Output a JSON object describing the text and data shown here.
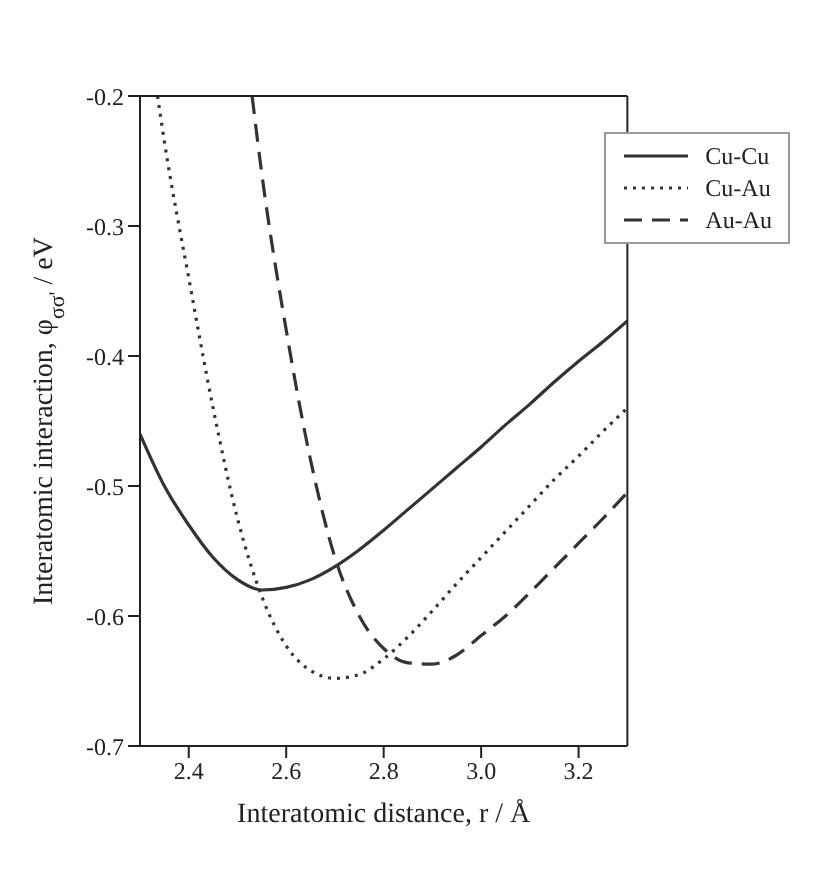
{
  "chart_data": {
    "type": "line",
    "xlabel": "Interatomic distance, r / Å",
    "ylabel": "Interatomic interaction, φ$_{σσ'}$ / eV",
    "xlim": [
      2.3,
      3.3
    ],
    "xticks": [
      {
        "value": 2.4,
        "label": "2.4"
      },
      {
        "value": 2.6,
        "label": "2.6"
      },
      {
        "value": 2.8,
        "label": "2.8"
      },
      {
        "value": 3.0,
        "label": "3.0"
      },
      {
        "value": 3.2,
        "label": "3.2"
      }
    ],
    "ylim": [
      -0.7,
      -0.2
    ],
    "yticks": [
      -0.7,
      -0.6,
      -0.5,
      -0.4,
      -0.3,
      -0.2
    ],
    "grid": false,
    "legend": "top right",
    "marker": "none",
    "series": [
      {
        "name": "Cu-Cu",
        "color": "#333333",
        "line_style": "solid",
        "x": [
          2.3,
          2.35,
          2.4,
          2.45,
          2.5,
          2.55,
          2.6,
          2.65,
          2.7,
          2.75,
          2.8,
          2.85,
          2.9,
          2.95,
          3.0,
          3.05,
          3.1,
          3.15,
          3.2,
          3.25,
          3.3
        ],
        "values": [
          -0.46,
          -0.5,
          -0.53,
          -0.555,
          -0.572,
          -0.58,
          -0.578,
          -0.572,
          -0.562,
          -0.549,
          -0.534,
          -0.518,
          -0.502,
          -0.486,
          -0.47,
          -0.453,
          -0.437,
          -0.42,
          -0.404,
          -0.389,
          -0.373
        ]
      },
      {
        "name": "Cu-Au",
        "color": "#333333",
        "line_style": "dotted",
        "x": [
          2.336,
          2.35,
          2.4,
          2.45,
          2.5,
          2.55,
          2.6,
          2.65,
          2.7,
          2.75,
          2.8,
          2.85,
          2.9,
          2.95,
          3.0,
          3.05,
          3.1,
          3.15,
          3.2,
          3.25,
          3.3
        ],
        "values": [
          -0.2,
          -0.235,
          -0.34,
          -0.44,
          -0.525,
          -0.585,
          -0.623,
          -0.642,
          -0.648,
          -0.645,
          -0.633,
          -0.616,
          -0.596,
          -0.575,
          -0.555,
          -0.535,
          -0.515,
          -0.495,
          -0.477,
          -0.458,
          -0.44
        ]
      },
      {
        "name": "Au-Au",
        "color": "#333333",
        "line_style": "dashed",
        "x": [
          2.53,
          2.55,
          2.6,
          2.65,
          2.7,
          2.75,
          2.8,
          2.85,
          2.9,
          2.95,
          3.0,
          3.05,
          3.1,
          3.15,
          3.2,
          3.25,
          3.3
        ],
        "values": [
          -0.2,
          -0.26,
          -0.38,
          -0.48,
          -0.555,
          -0.6,
          -0.625,
          -0.636,
          -0.637,
          -0.63,
          -0.615,
          -0.6,
          -0.582,
          -0.563,
          -0.544,
          -0.525,
          -0.505
        ]
      }
    ]
  }
}
